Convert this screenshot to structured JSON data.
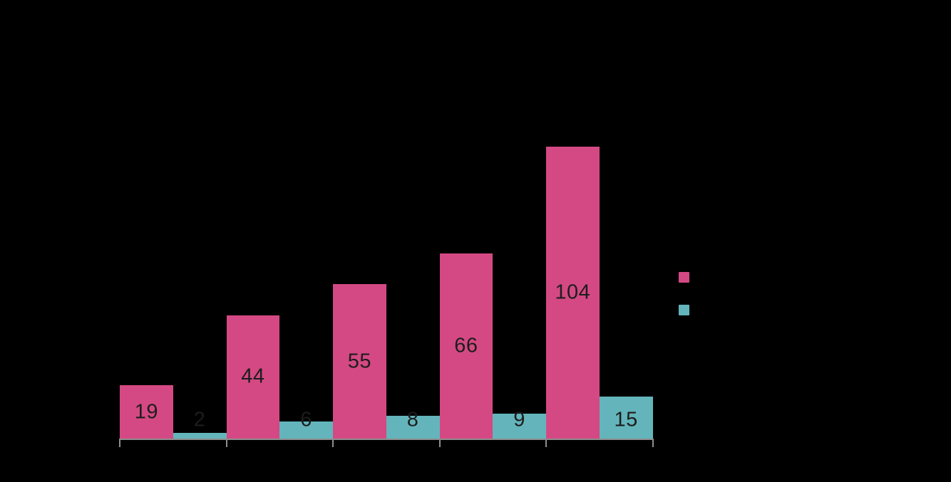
{
  "chart_data": {
    "type": "bar",
    "title": "",
    "categories": [
      "",
      "",
      "",
      "",
      ""
    ],
    "series": [
      {
        "name": "",
        "color": "#d44983",
        "values": [
          19,
          44,
          55,
          66,
          104
        ],
        "label_position": "inside-center"
      },
      {
        "name": "",
        "color": "#63b5bb",
        "values": [
          2,
          6,
          8,
          9,
          15
        ],
        "label_position": "fixed-near-baseline"
      }
    ],
    "value_label_color": "#1d1d1d",
    "axis_line_color": "#8e8e8e",
    "background_color": "#000000",
    "grid": false,
    "legend_position": "right",
    "x_tick_count": 6
  },
  "legend": {
    "items": [
      {
        "label": "",
        "swatch_color": "#d44983"
      },
      {
        "label": "",
        "swatch_color": "#63b5bb"
      }
    ]
  }
}
